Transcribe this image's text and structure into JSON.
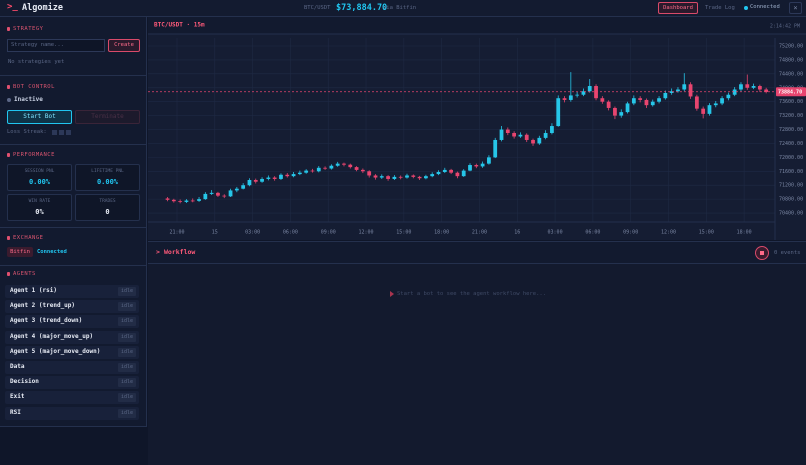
{
  "header": {
    "logo_mark": ">_",
    "logo": "Algomize",
    "pair": "BTC/USDT",
    "price": "$73,884.70",
    "source": "via Bitfin",
    "nav": [
      "Dashboard",
      "Trade Log"
    ],
    "status": "Connected",
    "close": "×"
  },
  "sidebar": {
    "strategy": {
      "title": "STRATEGY",
      "placeholder": "Strategy name...",
      "button": "Create",
      "empty": "No strategies yet"
    },
    "bot_control": {
      "title": "BOT CONTROL",
      "status": "Inactive",
      "start": "Start Bot",
      "terminate": "Terminate",
      "loss_streak": "Loss Streak:"
    },
    "performance": {
      "title": "PERFORMANCE",
      "cards": [
        {
          "label": "SESSION PNL",
          "value": "0.00%"
        },
        {
          "label": "LIFETIME PNL",
          "value": "0.00%"
        },
        {
          "label": "WIN RATE",
          "value": "0%"
        },
        {
          "label": "TRADES",
          "value": "0"
        }
      ]
    },
    "exchange": {
      "title": "EXCHANGE",
      "name": "Bitfin",
      "status": "Connected"
    },
    "agents": {
      "title": "AGENTS",
      "rows": [
        {
          "name": "Agent 1 (rsi)",
          "status": "idle"
        },
        {
          "name": "Agent 2 (trend_up)",
          "status": "idle"
        },
        {
          "name": "Agent 3 (trend_down)",
          "status": "idle"
        },
        {
          "name": "Agent 4 (major_move_up)",
          "status": "idle"
        },
        {
          "name": "Agent 5 (major_move_down)",
          "status": "idle"
        },
        {
          "name": "Data",
          "status": "idle"
        },
        {
          "name": "Decision",
          "status": "idle"
        },
        {
          "name": "Exit",
          "status": "idle"
        },
        {
          "name": "RSI",
          "status": "idle"
        }
      ]
    }
  },
  "chart_data": {
    "type": "candlestick",
    "title": "BTC/USDT · 15m",
    "time": "2:14:42 PM",
    "colors": {
      "up": "#26c6e8",
      "down": "#e8456f"
    },
    "open": [
      70820,
      70780,
      70740,
      70720,
      70760,
      70750,
      70800,
      70950,
      70980,
      70900,
      70880,
      71050,
      71100,
      71200,
      71350,
      71300,
      71380,
      71420,
      71380,
      71500,
      71460,
      71520,
      71560,
      71620,
      71600,
      71700,
      71680,
      71760,
      71820,
      71790,
      71720,
      71640,
      71600,
      71480,
      71420,
      71460,
      71380,
      71440,
      71420,
      71480,
      71440,
      71400,
      71460,
      71520,
      71580,
      71640,
      71560,
      71460,
      71620,
      71780,
      71740,
      71820,
      72000,
      72500,
      72800,
      72700,
      72600,
      72650,
      72500,
      72400,
      72560,
      72700,
      72900,
      73700,
      73650,
      73780,
      73800,
      73900,
      74050,
      73700,
      73600,
      73420,
      73200,
      73300,
      73550,
      73700,
      73650,
      73500,
      73600,
      73700,
      73850,
      73900,
      73950,
      74100,
      73750,
      73400,
      73250,
      73500,
      73550,
      73700,
      73800,
      73950,
      74100,
      74000,
      74050,
      73950
    ],
    "high": [
      70860,
      70810,
      70790,
      70800,
      70820,
      70860,
      71000,
      71060,
      71010,
      70940,
      71100,
      71150,
      71260,
      71400,
      71390,
      71430,
      71480,
      71460,
      71540,
      71550,
      71580,
      71620,
      71660,
      71670,
      71750,
      71740,
      71800,
      71870,
      71850,
      71820,
      71750,
      71680,
      71630,
      71520,
      71510,
      71490,
      71490,
      71480,
      71530,
      71510,
      71470,
      71500,
      71570,
      71630,
      71700,
      71670,
      71590,
      71660,
      71830,
      71820,
      71880,
      72060,
      72560,
      72900,
      72860,
      72750,
      72720,
      72690,
      72540,
      72620,
      72780,
      72980,
      73780,
      73760,
      74450,
      73880,
      73980,
      74250,
      74100,
      73760,
      73640,
      73460,
      73380,
      73600,
      73780,
      73760,
      73690,
      73660,
      73760,
      73920,
      73980,
      74020,
      74420,
      74160,
      73800,
      73460,
      73560,
      73620,
      73760,
      73860,
      74020,
      74160,
      74380,
      74120,
      74090,
      74000
    ],
    "low": [
      70740,
      70700,
      70680,
      70690,
      70710,
      70720,
      70780,
      70920,
      70860,
      70830,
      70860,
      71000,
      71080,
      71170,
      71250,
      71270,
      71340,
      71330,
      71350,
      71420,
      71430,
      71490,
      71530,
      71560,
      71570,
      71640,
      71650,
      71730,
      71740,
      71680,
      71600,
      71550,
      71420,
      71360,
      71380,
      71330,
      71350,
      71370,
      71390,
      71400,
      71350,
      71370,
      71430,
      71490,
      71550,
      71520,
      71400,
      71440,
      71600,
      71690,
      71700,
      71790,
      71980,
      72460,
      72640,
      72540,
      72560,
      72440,
      72330,
      72360,
      72520,
      72660,
      72880,
      73580,
      73600,
      73720,
      73760,
      73860,
      73640,
      73540,
      73350,
      73100,
      73140,
      73260,
      73500,
      73580,
      73420,
      73460,
      73550,
      73660,
      73800,
      73860,
      73900,
      73680,
      73340,
      73120,
      73200,
      73440,
      73500,
      73640,
      73760,
      73900,
      73940,
      73960,
      73880,
      73840
    ],
    "close": [
      70780,
      70740,
      70720,
      70760,
      70750,
      70800,
      70950,
      70980,
      70900,
      70880,
      71050,
      71100,
      71200,
      71350,
      71300,
      71380,
      71420,
      71380,
      71500,
      71460,
      71520,
      71560,
      71620,
      71600,
      71700,
      71680,
      71760,
      71820,
      71790,
      71720,
      71640,
      71600,
      71480,
      71420,
      71460,
      71380,
      71440,
      71420,
      71480,
      71440,
      71400,
      71460,
      71520,
      71580,
      71640,
      71560,
      71460,
      71620,
      71780,
      71740,
      71820,
      72000,
      72500,
      72800,
      72700,
      72600,
      72650,
      72500,
      72400,
      72560,
      72700,
      72900,
      73700,
      73650,
      73780,
      73800,
      73900,
      74050,
      73700,
      73600,
      73420,
      73200,
      73300,
      73550,
      73700,
      73650,
      73500,
      73600,
      73700,
      73850,
      73900,
      73950,
      74100,
      73750,
      73400,
      73250,
      73500,
      73550,
      73700,
      73800,
      73950,
      74100,
      74000,
      74050,
      73950,
      73880
    ],
    "xlim": [
      -3.1,
      96.4
    ],
    "xticks": [
      {
        "value": 1.5,
        "label": "21:00"
      },
      {
        "value": 7.5,
        "label": "15"
      },
      {
        "value": 13.5,
        "label": "03:00"
      },
      {
        "value": 19.5,
        "label": "06:00"
      },
      {
        "value": 25.5,
        "label": "09:00"
      },
      {
        "value": 31.5,
        "label": "12:00"
      },
      {
        "value": 37.5,
        "label": "15:00"
      },
      {
        "value": 43.5,
        "label": "18:00"
      },
      {
        "value": 49.5,
        "label": "21:00"
      },
      {
        "value": 55.5,
        "label": "16"
      },
      {
        "value": 61.5,
        "label": "03:00"
      },
      {
        "value": 67.5,
        "label": "06:00"
      },
      {
        "value": 73.5,
        "label": "09:00"
      },
      {
        "value": 79.5,
        "label": "12:00"
      },
      {
        "value": 85.5,
        "label": "15:00"
      },
      {
        "value": 91.5,
        "label": "18:00"
      }
    ],
    "ylim": [
      70143,
      75430
    ],
    "yticks": [
      {
        "value": 75200,
        "label": "75200.00"
      },
      {
        "value": 74800,
        "label": "74800.00"
      },
      {
        "value": 74400,
        "label": "74400.00"
      },
      {
        "value": 74000,
        "label": "74000.00"
      },
      {
        "value": 73600,
        "label": "73600.00"
      },
      {
        "value": 73200,
        "label": "73200.00"
      },
      {
        "value": 72800,
        "label": "72800.00"
      },
      {
        "value": 72400,
        "label": "72400.00"
      },
      {
        "value": 72000,
        "label": "72000.00"
      },
      {
        "value": 71600,
        "label": "71600.00"
      },
      {
        "value": 71200,
        "label": "71200.00"
      },
      {
        "value": 70800,
        "label": "70800.00"
      },
      {
        "value": 70400,
        "label": "70400.00"
      }
    ],
    "last_price": {
      "value": 73884.7,
      "label": "73884.70"
    },
    "grid": true
  },
  "workflow": {
    "prompt": ">",
    "title": "Workflow",
    "events": "0 events",
    "empty": "Start a bot to see the agent workflow here..."
  }
}
